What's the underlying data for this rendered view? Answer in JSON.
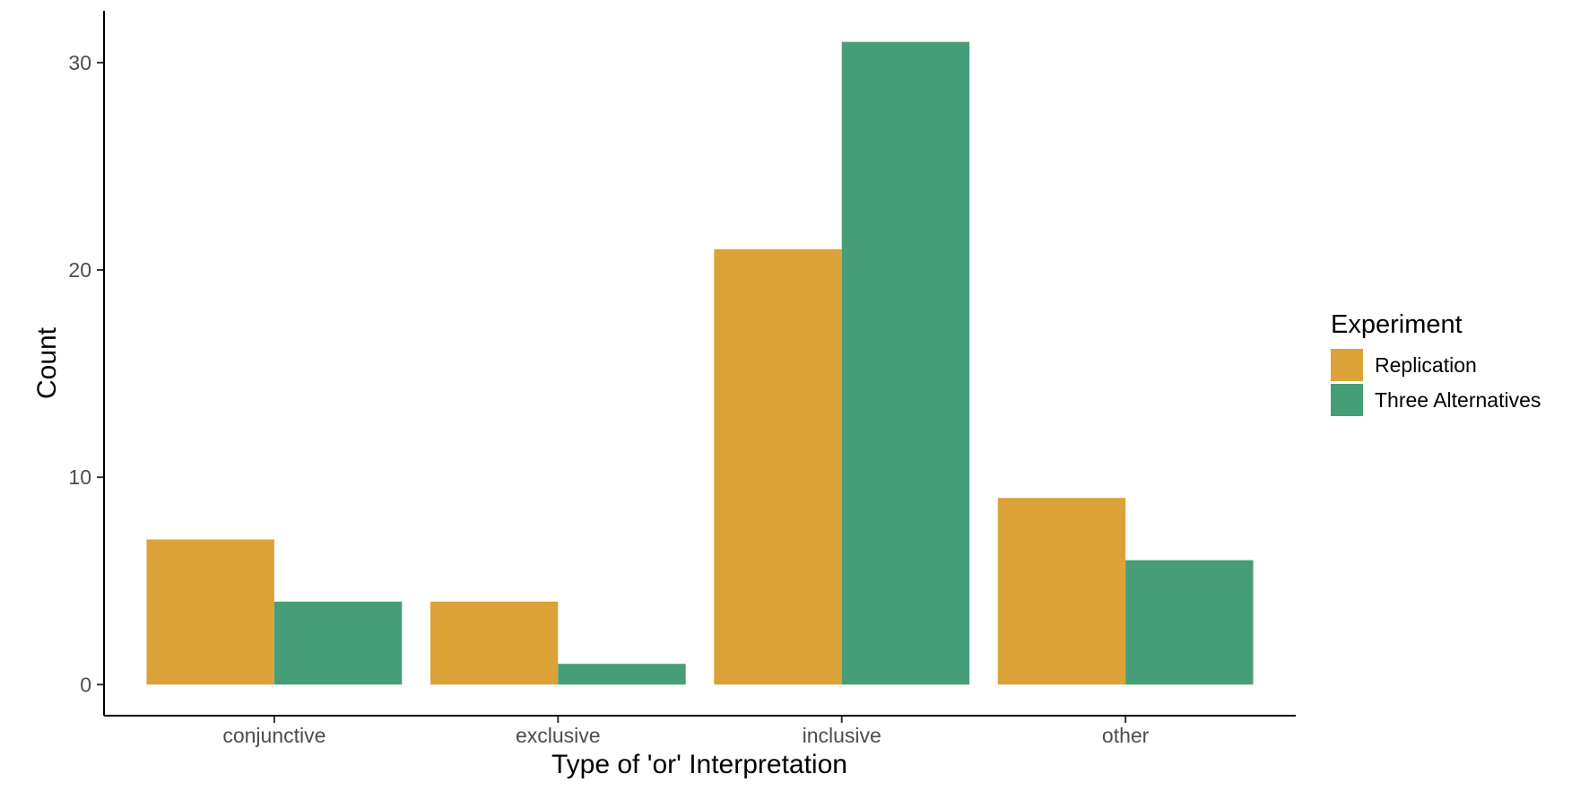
{
  "chart_data": {
    "type": "bar",
    "title": "",
    "xlabel": "Type of 'or' Interpretation",
    "ylabel": "Count",
    "categories": [
      "conjunctive",
      "exclusive",
      "inclusive",
      "other"
    ],
    "series": [
      {
        "name": "Replication",
        "values": [
          7,
          4,
          21,
          9
        ],
        "color": "#DBA237"
      },
      {
        "name": "Three Alternatives",
        "values": [
          4,
          1,
          31,
          6
        ],
        "color": "#469E78"
      }
    ],
    "yticks": [
      0,
      10,
      20,
      30
    ],
    "ylim": [
      -1.5,
      32.5
    ],
    "grid": false,
    "legend": {
      "title": "Experiment",
      "placement": "right"
    }
  }
}
